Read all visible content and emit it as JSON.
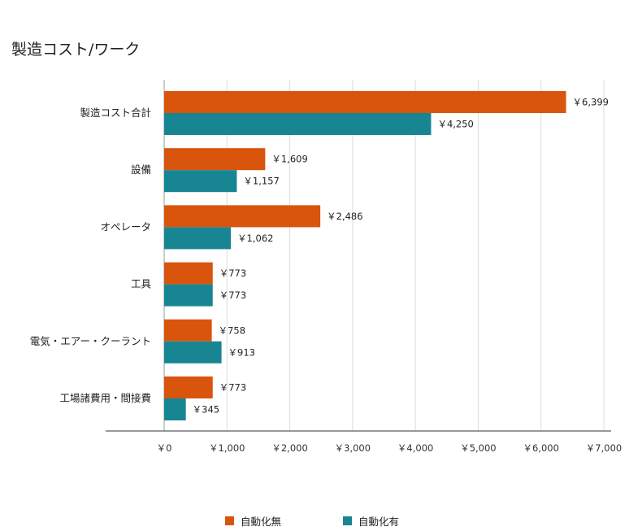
{
  "chart_data": {
    "type": "bar",
    "orientation": "horizontal",
    "title": "製造コスト/ワーク",
    "categories": [
      "製造コスト合計",
      "設備",
      "オペレータ",
      "工具",
      "電気・エアー・クーラント",
      "工場諸費用・間接費"
    ],
    "series": [
      {
        "name": "自動化無",
        "color": "#d9540c",
        "values": [
          6399,
          1609,
          2486,
          773,
          758,
          773
        ],
        "labels": [
          "￥6,399",
          "￥1,609",
          "￥2,486",
          "￥773",
          "￥758",
          "￥773"
        ]
      },
      {
        "name": "自動化有",
        "color": "#178692",
        "values": [
          4250,
          1157,
          1062,
          773,
          913,
          345
        ],
        "labels": [
          "￥4,250",
          "￥1,157",
          "￥1,062",
          "￥773",
          "￥913",
          "￥345"
        ]
      }
    ],
    "xlim": [
      0,
      7000
    ],
    "xticks": [
      0,
      1000,
      2000,
      3000,
      4000,
      5000,
      6000,
      7000
    ],
    "xtick_labels": [
      "￥0",
      "￥1,000",
      "￥2,000",
      "￥3,000",
      "￥4,000",
      "￥5,000",
      "￥6,000",
      "￥7,000"
    ],
    "grid": "vertical",
    "legend_position": "bottom"
  }
}
